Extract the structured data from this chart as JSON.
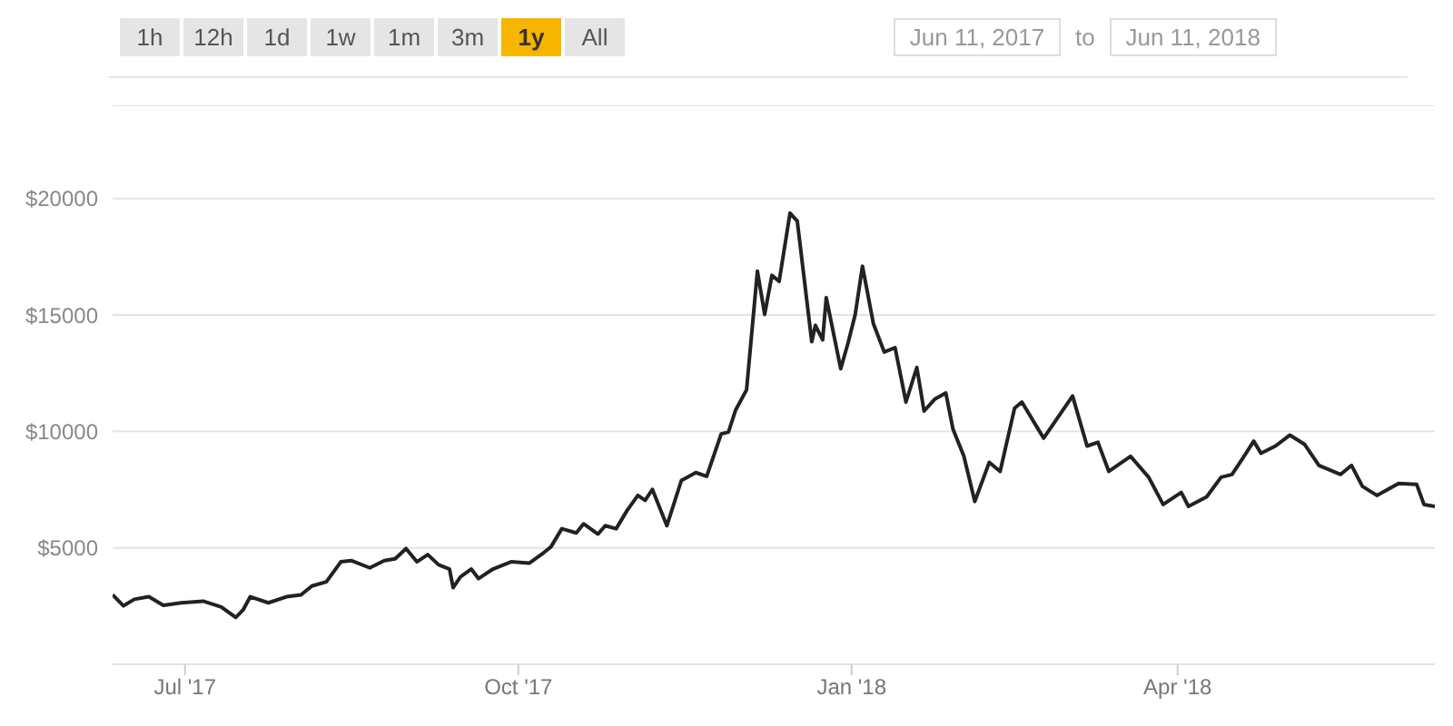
{
  "chart_data": {
    "type": "line",
    "annotations": [
      "1h",
      "12h",
      "1d",
      "1w",
      "1m",
      "3m",
      "1y",
      "All",
      "Jun 11, 2017",
      "to",
      "Jun 11, 2018"
    ],
    "x": [
      "2017-06-11",
      "2017-06-14",
      "2017-06-17",
      "2017-06-21",
      "2017-06-25",
      "2017-06-30",
      "2017-07-06",
      "2017-07-11",
      "2017-07-15",
      "2017-07-17",
      "2017-07-19",
      "2017-07-24",
      "2017-07-29",
      "2017-08-02",
      "2017-08-05",
      "2017-08-09",
      "2017-08-13",
      "2017-08-16",
      "2017-08-21",
      "2017-08-25",
      "2017-08-28",
      "2017-08-31",
      "2017-09-03",
      "2017-09-06",
      "2017-09-09",
      "2017-09-12",
      "2017-09-13",
      "2017-09-15",
      "2017-09-18",
      "2017-09-20",
      "2017-09-24",
      "2017-09-29",
      "2017-10-04",
      "2017-10-08",
      "2017-10-10",
      "2017-10-13",
      "2017-10-17",
      "2017-10-19",
      "2017-10-23",
      "2017-10-25",
      "2017-10-28",
      "2017-10-31",
      "2017-11-03",
      "2017-11-05",
      "2017-11-07",
      "2017-11-11",
      "2017-11-15",
      "2017-11-19",
      "2017-11-22",
      "2017-11-26",
      "2017-11-28",
      "2017-11-30",
      "2017-12-03",
      "2017-12-06",
      "2017-12-08",
      "2017-12-10",
      "2017-12-12",
      "2017-12-15",
      "2017-12-17",
      "2017-12-21",
      "2017-12-22",
      "2017-12-24",
      "2017-12-25",
      "2017-12-29",
      "2017-12-31",
      "2018-01-02",
      "2018-01-04",
      "2018-01-07",
      "2018-01-10",
      "2018-01-13",
      "2018-01-16",
      "2018-01-19",
      "2018-01-21",
      "2018-01-24",
      "2018-01-27",
      "2018-01-29",
      "2018-02-01",
      "2018-02-04",
      "2018-02-08",
      "2018-02-11",
      "2018-02-15",
      "2018-02-17",
      "2018-02-22",
      "2018-02-23",
      "2018-02-27",
      "2018-03-03",
      "2018-03-07",
      "2018-03-10",
      "2018-03-13",
      "2018-03-19",
      "2018-03-24",
      "2018-03-28",
      "2018-04-02",
      "2018-04-04",
      "2018-04-09",
      "2018-04-13",
      "2018-04-16",
      "2018-04-19",
      "2018-04-22",
      "2018-04-24",
      "2018-04-28",
      "2018-05-02",
      "2018-05-06",
      "2018-05-10",
      "2018-05-16",
      "2018-05-19",
      "2018-05-22",
      "2018-05-26",
      "2018-06-01",
      "2018-06-06",
      "2018-06-08",
      "2018-06-11"
    ],
    "series": [
      {
        "color": "#222222",
        "values": [
          2980,
          2510,
          2790,
          2900,
          2530,
          2640,
          2710,
          2460,
          2010,
          2330,
          2900,
          2640,
          2900,
          2980,
          3360,
          3540,
          4400,
          4450,
          4140,
          4450,
          4530,
          4970,
          4400,
          4710,
          4270,
          4090,
          3290,
          3750,
          4090,
          3680,
          4090,
          4400,
          4340,
          4790,
          5040,
          5820,
          5640,
          6030,
          5590,
          5950,
          5820,
          6600,
          7250,
          7040,
          7510,
          5950,
          7890,
          8230,
          8070,
          9890,
          9970,
          10920,
          11780,
          16880,
          15020,
          16700,
          16440,
          19370,
          19030,
          13850,
          14550,
          13930,
          15740,
          12690,
          13780,
          15020,
          17090,
          14630,
          13410,
          13590,
          11260,
          12740,
          10870,
          11390,
          11650,
          10090,
          8930,
          6990,
          8670,
          8280,
          11000,
          11260,
          9970,
          9710,
          10610,
          11520,
          9370,
          9530,
          8280,
          8930,
          8030,
          6860,
          7380,
          6780,
          7190,
          8030,
          8150,
          8850,
          9580,
          9060,
          9370,
          9840,
          9450,
          8540,
          8150,
          8540,
          7640,
          7250,
          7760,
          7720,
          6860,
          6780
        ]
      }
    ],
    "xlim": [
      "2017-06-11",
      "2018-06-11"
    ],
    "xticks": [
      {
        "value": "2017-07-01",
        "label": "Jul '17"
      },
      {
        "value": "2017-10-01",
        "label": "Oct '17"
      },
      {
        "value": "2018-01-01",
        "label": "Jan '18"
      },
      {
        "value": "2018-04-01",
        "label": "Apr '18"
      }
    ],
    "ylim": [
      0,
      24000
    ],
    "yticks": [
      {
        "value": 5000,
        "label": "$5000"
      },
      {
        "value": 10000,
        "label": "$10000"
      },
      {
        "value": 15000,
        "label": "$15000"
      },
      {
        "value": 20000,
        "label": "$20000"
      }
    ],
    "grid": "y"
  }
}
